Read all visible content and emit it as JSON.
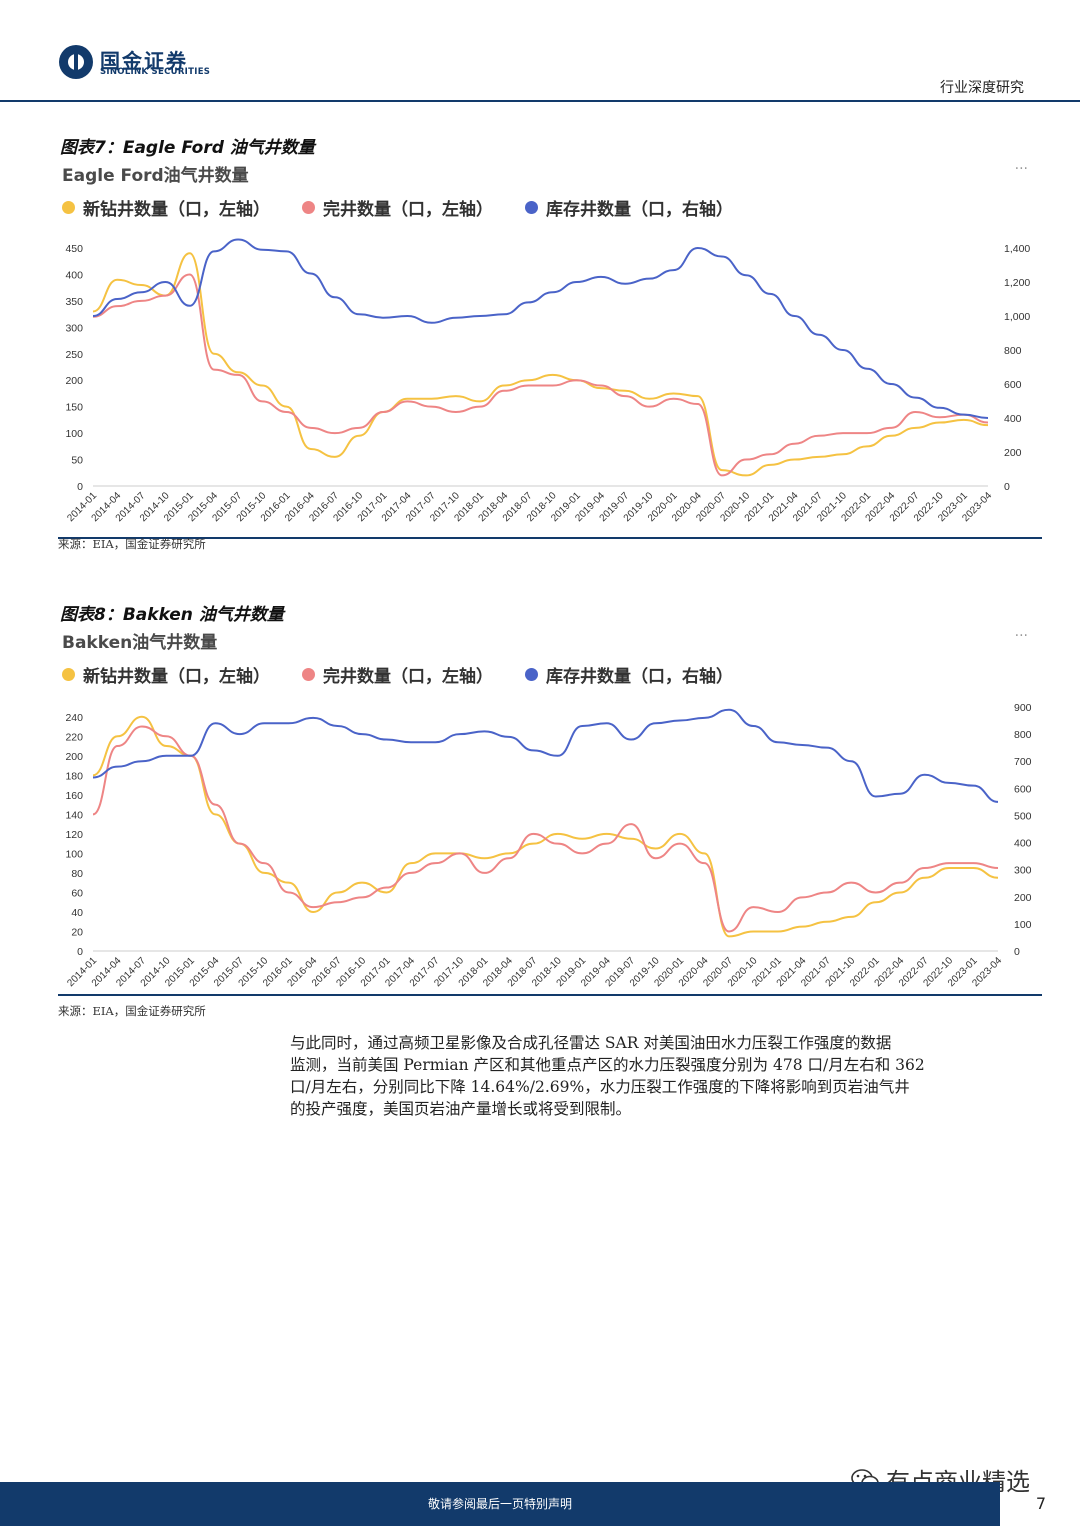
{
  "header": {
    "brand_cn": "国金证券",
    "brand_en": "SINOLINK SECURITIES",
    "report_type": "行业深度研究"
  },
  "figures": [
    {
      "title": "图表7：Eagle Ford 油气井数量",
      "subtitle": "Eagle Ford油气井数量",
      "source": "来源：EIA，国金证券研究所"
    },
    {
      "title": "图表8：Bakken 油气井数量",
      "subtitle": "Bakken油气井数量",
      "source": "来源：EIA，国金证券研究所"
    }
  ],
  "chart_data": [
    {
      "type": "line",
      "title": "Eagle Ford油气井数量",
      "legend": [
        "新钻井数量（口，左轴）",
        "完井数量（口，左轴）",
        "库存井数量（口，右轴）"
      ],
      "colors": [
        "#f5c242",
        "#ee8585",
        "#4a63c8"
      ],
      "x": [
        "2014-01",
        "2014-04",
        "2014-07",
        "2014-10",
        "2015-01",
        "2015-04",
        "2015-07",
        "2015-10",
        "2016-01",
        "2016-04",
        "2016-07",
        "2016-10",
        "2017-01",
        "2017-04",
        "2017-07",
        "2017-10",
        "2018-01",
        "2018-04",
        "2018-07",
        "2018-10",
        "2019-01",
        "2019-04",
        "2019-07",
        "2019-10",
        "2020-01",
        "2020-04",
        "2020-07",
        "2020-10",
        "2021-01",
        "2021-04",
        "2021-07",
        "2021-10",
        "2022-01",
        "2022-04",
        "2022-07",
        "2022-10",
        "2023-01",
        "2023-04"
      ],
      "y_left_ticks": [
        "0",
        "50",
        "100",
        "150",
        "200",
        "250",
        "300",
        "350",
        "400",
        "450"
      ],
      "y_right_ticks": [
        "0",
        "200",
        "400",
        "600",
        "800",
        "1,000",
        "1,200",
        "1,400"
      ],
      "y_left_range": [
        0,
        450
      ],
      "y_right_range": [
        0,
        1400
      ],
      "series": [
        {
          "name": "新钻井数量（口，左轴）",
          "axis": "left",
          "values": [
            330,
            390,
            380,
            360,
            440,
            250,
            215,
            190,
            150,
            70,
            55,
            95,
            140,
            165,
            165,
            170,
            160,
            190,
            200,
            210,
            200,
            185,
            180,
            165,
            175,
            170,
            30,
            20,
            40,
            50,
            55,
            60,
            75,
            95,
            110,
            120,
            125,
            115
          ]
        },
        {
          "name": "完井数量（口，左轴）",
          "axis": "left",
          "values": [
            320,
            340,
            350,
            360,
            400,
            220,
            210,
            160,
            140,
            110,
            100,
            110,
            140,
            160,
            150,
            140,
            150,
            180,
            190,
            190,
            200,
            190,
            170,
            150,
            165,
            155,
            20,
            50,
            60,
            80,
            95,
            100,
            100,
            110,
            140,
            130,
            135,
            120
          ]
        },
        {
          "name": "库存井数量（口，右轴）",
          "axis": "right",
          "values": [
            1000,
            1100,
            1140,
            1200,
            1060,
            1380,
            1450,
            1390,
            1380,
            1250,
            1110,
            1010,
            990,
            1000,
            960,
            990,
            1000,
            1010,
            1080,
            1140,
            1200,
            1230,
            1190,
            1220,
            1270,
            1400,
            1350,
            1240,
            1130,
            1000,
            890,
            800,
            690,
            600,
            520,
            460,
            420,
            400
          ]
        }
      ]
    },
    {
      "type": "line",
      "title": "Bakken油气井数量",
      "legend": [
        "新钻井数量（口，左轴）",
        "完井数量（口，左轴）",
        "库存井数量（口，右轴）"
      ],
      "colors": [
        "#f5c242",
        "#ee8585",
        "#4a63c8"
      ],
      "x": [
        "2014-01",
        "2014-04",
        "2014-07",
        "2014-10",
        "2015-01",
        "2015-04",
        "2015-07",
        "2015-10",
        "2016-01",
        "2016-04",
        "2016-07",
        "2016-10",
        "2017-01",
        "2017-04",
        "2017-07",
        "2017-10",
        "2018-01",
        "2018-04",
        "2018-07",
        "2018-10",
        "2019-01",
        "2019-04",
        "2019-07",
        "2019-10",
        "2020-01",
        "2020-04",
        "2020-07",
        "2020-10",
        "2021-01",
        "2021-04",
        "2021-07",
        "2021-10",
        "2022-01",
        "2022-04",
        "2022-07",
        "2022-10",
        "2023-01",
        "2023-04"
      ],
      "y_left_ticks": [
        "0",
        "20",
        "40",
        "60",
        "80",
        "100",
        "120",
        "140",
        "160",
        "180",
        "200",
        "220",
        "240"
      ],
      "y_right_ticks": [
        "0",
        "100",
        "200",
        "300",
        "400",
        "500",
        "600",
        "700",
        "800",
        "900"
      ],
      "y_left_range": [
        0,
        250
      ],
      "y_right_range": [
        0,
        900
      ],
      "series": [
        {
          "name": "新钻井数量（口，左轴）",
          "axis": "left",
          "values": [
            180,
            220,
            240,
            210,
            200,
            140,
            110,
            80,
            70,
            40,
            60,
            70,
            60,
            90,
            100,
            100,
            95,
            100,
            110,
            120,
            115,
            120,
            115,
            105,
            120,
            100,
            15,
            20,
            20,
            25,
            30,
            35,
            50,
            60,
            75,
            85,
            85,
            75
          ]
        },
        {
          "name": "完井数量（口，左轴）",
          "axis": "left",
          "values": [
            140,
            210,
            230,
            220,
            200,
            150,
            110,
            90,
            60,
            45,
            50,
            55,
            65,
            80,
            90,
            100,
            80,
            95,
            120,
            110,
            100,
            110,
            130,
            95,
            110,
            90,
            20,
            45,
            40,
            55,
            60,
            70,
            60,
            70,
            85,
            90,
            90,
            85
          ]
        },
        {
          "name": "库存井数量（口，右轴）",
          "axis": "right",
          "values": [
            640,
            680,
            700,
            720,
            720,
            840,
            800,
            840,
            840,
            860,
            830,
            800,
            780,
            770,
            770,
            800,
            810,
            790,
            740,
            720,
            830,
            840,
            780,
            840,
            850,
            860,
            890,
            830,
            770,
            760,
            750,
            700,
            570,
            580,
            650,
            620,
            610,
            550
          ]
        }
      ]
    }
  ],
  "body": {
    "lines": [
      "与此同时，通过高频卫星影像及合成孔径雷达 SAR 对美国油田水力压裂工作强度的数据",
      "监测，当前美国 Permian 产区和其他重点产区的水力压裂强度分别为 478 口/月左右和 362",
      "口/月左右，分别同比下降 14.64%/2.69%，水力压裂工作强度的下降将影响到页岩油气井",
      "的投产强度，美国页岩油产量增长或将受到限制。"
    ]
  },
  "footer": {
    "disclaimer": "敬请参阅最后一页特别声明",
    "page": "7",
    "watermark": "有点商业精选"
  }
}
